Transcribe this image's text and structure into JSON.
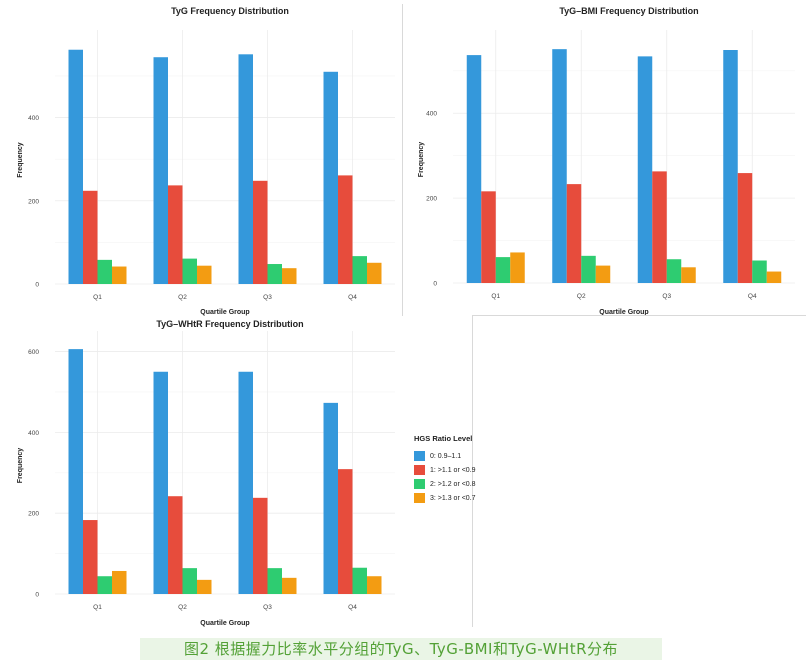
{
  "caption": "图2 根据握力比率水平分组的TyG、TyG-BMI和TyG-WHtR分布",
  "colors": [
    "#3498db",
    "#e74c3c",
    "#2ecc71",
    "#f39c12"
  ],
  "legend": {
    "title": "HGS Ratio Level",
    "items": [
      "0: 0.9–1.1",
      "1: >1.1 or <0.9",
      "2: >1.2 or <0.8",
      "3: >1.3 or <0.7"
    ]
  },
  "chart_data": [
    {
      "type": "bar",
      "title": "TyG Frequency Distribution",
      "xlabel": "Quartile Group",
      "ylabel": "Frequency",
      "categories": [
        "Q1",
        "Q2",
        "Q3",
        "Q4"
      ],
      "yticks": [
        0,
        200,
        400
      ],
      "yticklabels": [
        "0",
        "200",
        "400"
      ],
      "ylim": [
        0,
        596
      ],
      "series": [
        {
          "name": "0: 0.9–1.1",
          "values": [
            563,
            545,
            552,
            510
          ]
        },
        {
          "name": "1: >1.1 or <0.9",
          "values": [
            224,
            237,
            248,
            261
          ]
        },
        {
          "name": "2: >1.2 or <0.8",
          "values": [
            58,
            61,
            48,
            67
          ]
        },
        {
          "name": "3: >1.3 or <0.7",
          "values": [
            42,
            44,
            38,
            51
          ]
        }
      ]
    },
    {
      "type": "bar",
      "title": "TyG–BMI Frequency Distribution",
      "xlabel": "Quartile Group",
      "ylabel": "Frequency",
      "categories": [
        "Q1",
        "Q2",
        "Q3",
        "Q4"
      ],
      "yticks": [
        0,
        200,
        400
      ],
      "yticklabels": [
        "0",
        "200",
        "400"
      ],
      "ylim": [
        0,
        582
      ],
      "series": [
        {
          "name": "0: 0.9–1.1",
          "values": [
            537,
            551,
            534,
            549
          ]
        },
        {
          "name": "1: >1.1 or <0.9",
          "values": [
            216,
            233,
            263,
            259
          ]
        },
        {
          "name": "2: >1.2 or <0.8",
          "values": [
            61,
            64,
            56,
            53
          ]
        },
        {
          "name": "3: >1.3 or <0.7",
          "values": [
            72,
            41,
            37,
            27
          ]
        }
      ]
    },
    {
      "type": "bar",
      "title": "TyG–WHtR Frequency Distribution",
      "xlabel": "Quartile Group",
      "ylabel": "Frequency",
      "categories": [
        "Q1",
        "Q2",
        "Q3",
        "Q4"
      ],
      "yticks": [
        0,
        200,
        400,
        600
      ],
      "yticklabels": [
        "0",
        "200",
        "400",
        "600"
      ],
      "ylim": [
        0,
        636
      ],
      "series": [
        {
          "name": "0: 0.9–1.1",
          "values": [
            606,
            550,
            550,
            473
          ]
        },
        {
          "name": "1: >1.1 or <0.9",
          "values": [
            183,
            242,
            238,
            309
          ]
        },
        {
          "name": "2: >1.2 or <0.8",
          "values": [
            44,
            64,
            64,
            65
          ]
        },
        {
          "name": "3: >1.3 or <0.7",
          "values": [
            57,
            35,
            40,
            44
          ]
        }
      ]
    }
  ]
}
